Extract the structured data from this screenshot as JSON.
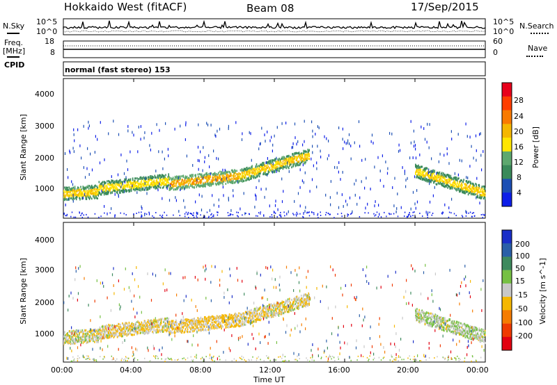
{
  "header": {
    "station": "Hokkaido West (fitACF)",
    "beam": "Beam 08",
    "date": "17/Sep/2015"
  },
  "strip": {
    "nsky_label": "N.Sky",
    "nsearch_label": "N.Search",
    "nsky_ticks": [
      "10^5",
      "10^0"
    ],
    "nsky_right_ticks": [
      "10^5",
      "10^0"
    ],
    "freq_label": "Freq.",
    "freq_unit": "[MHz]",
    "freq_ticks": [
      "18",
      "8"
    ],
    "nave_label": "Nave",
    "nave_ticks": [
      "60",
      "0"
    ],
    "cpid_label": "CPID",
    "cpid_value": "normal (fast stereo) 153"
  },
  "chart_data": [
    {
      "type": "heatmap",
      "panel": "power",
      "ylabel": "Slant Range [km]",
      "yticks": [
        "4000",
        "3000",
        "2000",
        "1000"
      ],
      "ylim": [
        180,
        4600
      ],
      "xlim": [
        "00:00",
        "24:00"
      ],
      "colorbar": {
        "label": "Power [dB]",
        "ticks": [
          "28",
          "24",
          "20",
          "16",
          "12",
          "8",
          "4"
        ],
        "colors": [
          "#e8001b",
          "#ff3d00",
          "#f97a00",
          "#f5b700",
          "#ffe600",
          "#5ea86e",
          "#3a8a5a",
          "#1c4fb4",
          "#0d1ee8"
        ]
      },
      "echo_bands": [
        {
          "x": [
            "00:00",
            "02:00"
          ],
          "center_km": [
            980,
            1050
          ],
          "power_db": 10
        },
        {
          "x": [
            "02:00",
            "06:00"
          ],
          "center_km": [
            1150,
            1400
          ],
          "power_db": 8
        },
        {
          "x": [
            "06:00",
            "10:00"
          ],
          "center_km": [
            1300,
            1550
          ],
          "power_db": 12
        },
        {
          "x": [
            "10:00",
            "14:00"
          ],
          "center_km": [
            1550,
            2200
          ],
          "power_db": 10
        },
        {
          "x": [
            "20:00",
            "24:00"
          ],
          "center_km": [
            1700,
            1000
          ],
          "power_db": 9
        }
      ]
    },
    {
      "type": "heatmap",
      "panel": "velocity",
      "ylabel": "Slant Range [km]",
      "yticks": [
        "4000",
        "3000",
        "2000",
        "1000"
      ],
      "ylim": [
        180,
        4600
      ],
      "xlim": [
        "00:00",
        "24:00"
      ],
      "xticks": [
        "00:00",
        "04:00",
        "08:00",
        "12:00",
        "16:00",
        "20:00",
        "00:00"
      ],
      "xlabel": "Time UT",
      "colorbar": {
        "label": "Velocity [m s^-1]",
        "ticks": [
          "200",
          "100",
          "50",
          "15",
          "-15",
          "-50",
          "-100",
          "-200"
        ],
        "colors": [
          "#1a2ec8",
          "#2a5fa8",
          "#3e8a5e",
          "#76c043",
          "#c8c8c8",
          "#f5b700",
          "#f57c00",
          "#ef3a00",
          "#e20010"
        ]
      },
      "echo_bands": [
        {
          "x": [
            "00:00",
            "02:00"
          ],
          "center_km": [
            980,
            1050
          ],
          "velocity": 0
        },
        {
          "x": [
            "02:00",
            "06:00"
          ],
          "center_km": [
            1150,
            1400
          ],
          "velocity": -10
        },
        {
          "x": [
            "06:00",
            "10:00"
          ],
          "center_km": [
            1300,
            1550
          ],
          "velocity": -20
        },
        {
          "x": [
            "10:00",
            "14:00"
          ],
          "center_km": [
            1550,
            2200
          ],
          "velocity": -10
        },
        {
          "x": [
            "20:00",
            "24:00"
          ],
          "center_km": [
            1700,
            1000
          ],
          "velocity": 10
        }
      ]
    }
  ]
}
